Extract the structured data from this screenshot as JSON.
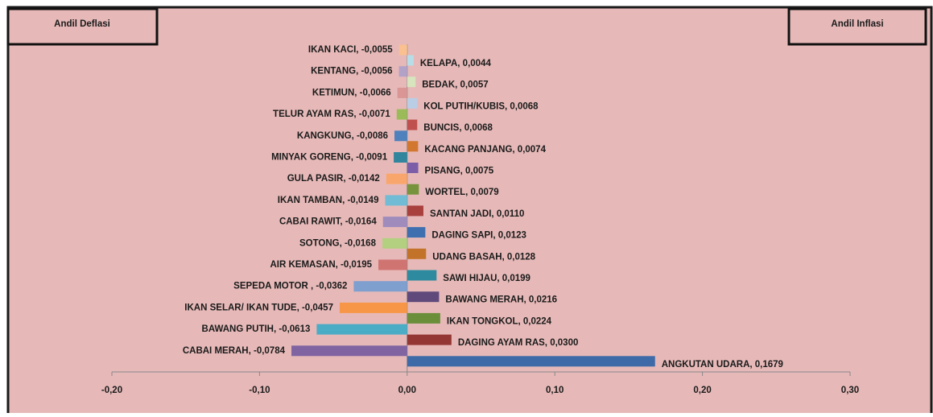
{
  "chart_data": {
    "type": "bar",
    "orientation": "horizontal",
    "annotations": [
      "Andil Deflasi",
      "Andil Inflasi"
    ],
    "series": [
      {
        "values": [
          -0.0055,
          -0.0056,
          -0.0066,
          -0.0071,
          -0.0086,
          -0.0091,
          -0.0142,
          -0.0149,
          -0.0164,
          -0.0168,
          -0.0195,
          -0.0362,
          -0.0457,
          -0.0613,
          -0.0784
        ],
        "value_labels": [
          "IKAN KACI, -0,0055",
          "KENTANG, -0,0056",
          "KETIMUN, -0,0066",
          "TELUR AYAM RAS, -0,0071",
          "KANGKUNG, -0,0086",
          "MINYAK GORENG, -0,0091",
          "GULA PASIR, -0,0142",
          "IKAN TAMBAN, -0,0149",
          "CABAI RAWIT, -0,0164",
          "SOTONG, -0,0168",
          "AIR KEMASAN, -0,0195",
          "SEPEDA MOTOR , -0,0362",
          "IKAN SELAR/ IKAN TUDE, -0,0457",
          "BAWANG PUTIH, -0,0613",
          "CABAI MERAH, -0,0784"
        ],
        "colors": [
          "#fac08f",
          "#b3a2c7",
          "#d99694",
          "#9bbb59",
          "#4f81bd",
          "#31859c",
          "#f9a66c",
          "#71bcd4",
          "#a08bbd",
          "#b3cf80",
          "#d07472",
          "#7f9fcf",
          "#f79646",
          "#4bacc6",
          "#8064a2"
        ]
      },
      {
        "values": [
          0.0044,
          0.0057,
          0.0068,
          0.0068,
          0.0074,
          0.0075,
          0.0079,
          0.011,
          0.0123,
          0.0128,
          0.0199,
          0.0216,
          0.0224,
          0.03,
          0.1679
        ],
        "value_labels": [
          "KELAPA, 0,0044",
          "BEDAK, 0,0057",
          "KOL PUTIH/KUBIS, 0,0068",
          "BUNCIS, 0,0068",
          "KACANG PANJANG, 0,0074",
          "PISANG, 0,0075",
          "WORTEL, 0,0079",
          "SANTAN JADI, 0,0110",
          "DAGING SAPI, 0,0123",
          "UDANG BASAH, 0,0128",
          "SAWI HIJAU, 0,0199",
          "BAWANG MERAH, 0,0216",
          "IKAN TONGKOL, 0,0224",
          "DAGING AYAM RAS, 0,0300",
          "ANGKUTAN UDARA, 0,1679"
        ],
        "colors": [
          "#b7dde8",
          "#d7e4bd",
          "#b9cde5",
          "#c0504d",
          "#d2772f",
          "#7b5ea7",
          "#77933c",
          "#a8403d",
          "#3f6faf",
          "#c3722a",
          "#2e8a9e",
          "#604a7b",
          "#6b8e3a",
          "#943634",
          "#3e6aa8"
        ]
      }
    ],
    "xlim": [
      -0.2,
      0.3
    ],
    "xticks": [
      {
        "value": -0.2,
        "label": "-0,20"
      },
      {
        "value": -0.1,
        "label": "-0,10"
      },
      {
        "value": 0,
        "label": "0,00"
      },
      {
        "value": 0.1,
        "label": "0,10"
      },
      {
        "value": 0.2,
        "label": "0,20"
      },
      {
        "value": 0.3,
        "label": "0,30"
      }
    ],
    "background": "#e6b9b8"
  }
}
